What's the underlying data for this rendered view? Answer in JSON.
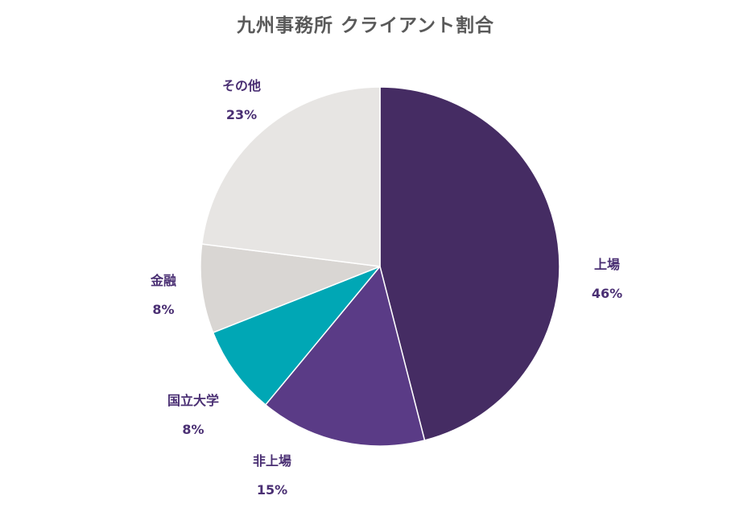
{
  "chart_data": {
    "type": "pie",
    "title": "九州事務所 クライアント割合",
    "slices": [
      {
        "label": "上場",
        "value": 46,
        "value_label": "46%",
        "color": "#452c63"
      },
      {
        "label": "非上場",
        "value": 15,
        "value_label": "15%",
        "color": "#5a3b86"
      },
      {
        "label": "国立大学",
        "value": 8,
        "value_label": "8%",
        "color": "#00a7b5"
      },
      {
        "label": "金融",
        "value": 8,
        "value_label": "8%",
        "color": "#d9d6d3"
      },
      {
        "label": "その他",
        "value": 23,
        "value_label": "23%",
        "color": "#e7e5e3"
      }
    ],
    "legend": "none",
    "start": "12 o'clock",
    "direction": "clockwise"
  }
}
